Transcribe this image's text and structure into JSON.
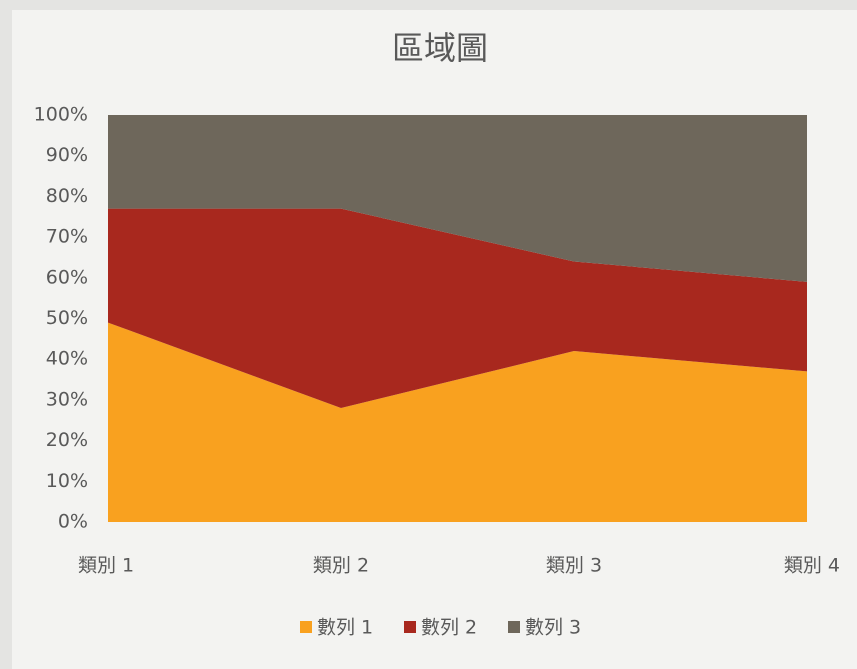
{
  "chart_data": {
    "type": "area",
    "stacked": true,
    "title": "區域圖",
    "categories": [
      "類別 1",
      "類別 2",
      "類別 3",
      "類別 4"
    ],
    "series": [
      {
        "name": "數列 1",
        "color": "#f9a11f",
        "values": [
          49,
          28,
          42,
          37
        ]
      },
      {
        "name": "數列 2",
        "color": "#a8281e",
        "values": [
          28,
          49,
          22,
          22
        ]
      },
      {
        "name": "數列 3",
        "color": "#6e675b",
        "values": [
          23,
          23,
          36,
          41
        ]
      }
    ],
    "ylim": [
      0,
      100
    ],
    "yticks": [
      {
        "value": 0,
        "label": "0%"
      },
      {
        "value": 10,
        "label": "10%"
      },
      {
        "value": 20,
        "label": "20%"
      },
      {
        "value": 30,
        "label": "30%"
      },
      {
        "value": 40,
        "label": "40%"
      },
      {
        "value": 50,
        "label": "50%"
      },
      {
        "value": 60,
        "label": "60%"
      },
      {
        "value": 70,
        "label": "70%"
      },
      {
        "value": 80,
        "label": "80%"
      },
      {
        "value": 90,
        "label": "90%"
      },
      {
        "value": 100,
        "label": "100%"
      }
    ],
    "legend": "bottom"
  }
}
